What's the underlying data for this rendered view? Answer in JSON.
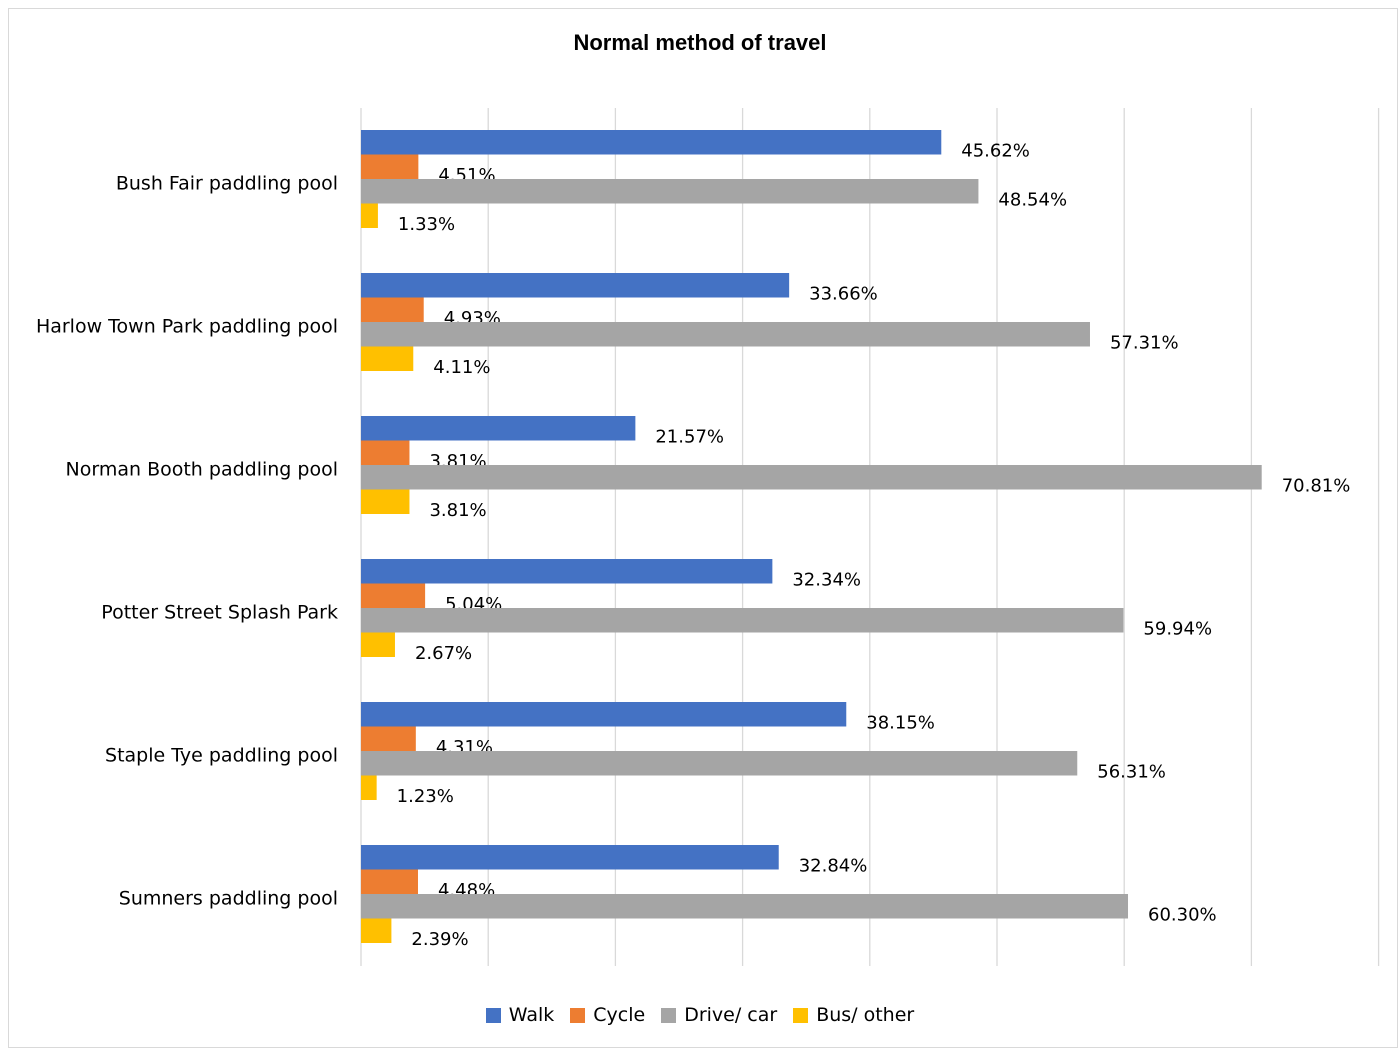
{
  "chart_data": {
    "type": "bar",
    "orientation": "horizontal",
    "title": "Normal method of travel",
    "categories": [
      "Bush Fair paddling pool",
      "Harlow Town Park paddling pool",
      "Norman Booth paddling pool",
      "Potter Street Splash Park",
      "Staple Tye paddling pool",
      "Sumners paddling pool"
    ],
    "series": [
      {
        "name": "Walk",
        "color": "#4472C4",
        "values": [
          45.62,
          33.66,
          21.57,
          32.34,
          38.15,
          32.84
        ],
        "labels": [
          "45.62%",
          "33.66%",
          "21.57%",
          "32.34%",
          "38.15%",
          "32.84%"
        ]
      },
      {
        "name": "Cycle",
        "color": "#ED7D31",
        "values": [
          4.51,
          4.93,
          3.81,
          5.04,
          4.31,
          4.48
        ],
        "labels": [
          "4.51%",
          "4.93%",
          "3.81%",
          "5.04%",
          "4.31%",
          "4.48%"
        ]
      },
      {
        "name": "Drive/ car",
        "color": "#A5A5A5",
        "values": [
          48.54,
          57.31,
          70.81,
          59.94,
          56.31,
          60.3
        ],
        "labels": [
          "48.54%",
          "57.31%",
          "70.81%",
          "59.94%",
          "56.31%",
          "60.30%"
        ]
      },
      {
        "name": "Bus/ other",
        "color": "#FFC000",
        "values": [
          1.33,
          4.11,
          3.81,
          2.67,
          1.23,
          2.39
        ],
        "labels": [
          "1.33%",
          "4.11%",
          "3.81%",
          "2.67%",
          "1.23%",
          "2.39%"
        ]
      }
    ],
    "xlim": [
      0,
      80
    ],
    "gridlines": "vertical",
    "grid_step": 10,
    "legend_position": "bottom"
  }
}
